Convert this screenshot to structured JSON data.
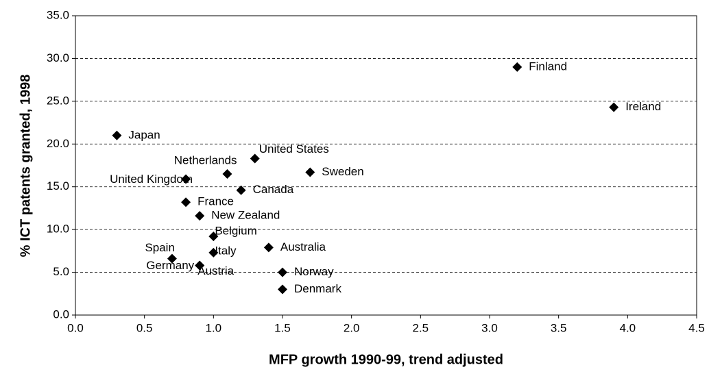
{
  "chart_data": {
    "type": "scatter",
    "x_label": "MFP growth 1990-99, trend adjusted",
    "y_label": "% ICT patents granted, 1998",
    "labels": [
      "Finland",
      "Ireland",
      "Japan",
      "United States",
      "Netherlands",
      "Sweden",
      "United Kingdom",
      "Canada",
      "France",
      "New Zealand",
      "Belgium",
      "Australia",
      "Italy",
      "Spain",
      "Germany",
      "Austria",
      "Norway",
      "Denmark"
    ],
    "x": [
      3.2,
      3.9,
      0.3,
      1.3,
      1.1,
      1.7,
      0.8,
      1.2,
      0.8,
      0.9,
      1.0,
      1.4,
      1.0,
      0.7,
      0.9,
      0.9,
      1.5,
      1.5
    ],
    "y": [
      29.0,
      24.3,
      21.0,
      18.3,
      16.5,
      16.7,
      15.9,
      14.6,
      13.2,
      11.6,
      9.2,
      7.9,
      7.3,
      6.6,
      5.8,
      5.8,
      5.0,
      3.0
    ],
    "color": "#000000",
    "xlim": [
      0,
      4.5
    ],
    "xticks": [
      {
        "value": 0,
        "label": "0.0"
      },
      0.5,
      {
        "value": 1,
        "label": "1.0"
      },
      1.5,
      {
        "value": 2,
        "label": "2.0"
      },
      2.5,
      {
        "value": 3,
        "label": "3.0"
      },
      3.5,
      {
        "value": 4,
        "label": "4.0"
      },
      4.5
    ],
    "ylim": [
      0,
      35
    ],
    "yticks": [
      {
        "value": 0,
        "label": "0.0"
      },
      {
        "value": 5,
        "label": "5.0"
      },
      {
        "value": 10,
        "label": "10.0"
      },
      {
        "value": 15,
        "label": "15.0"
      },
      {
        "value": 20,
        "label": "20.0"
      },
      {
        "value": 25,
        "label": "25.0"
      },
      {
        "value": 30,
        "label": "30.0"
      },
      {
        "value": 35,
        "label": "35.0"
      }
    ],
    "grid": true
  }
}
